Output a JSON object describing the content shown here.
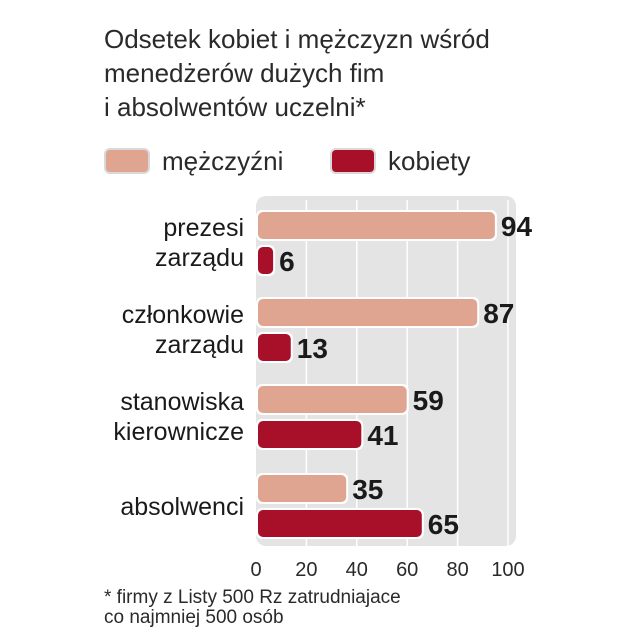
{
  "title_lines": [
    "Odsetek kobiet i mężczyzn wśród",
    "menedżerów dużych fim",
    "i absolwentów uczelni*"
  ],
  "legend": [
    {
      "label": "mężczyźni",
      "color": "#e0a590"
    },
    {
      "label": "kobiety",
      "color": "#a8102a"
    }
  ],
  "chart_data": {
    "type": "bar",
    "orientation": "horizontal",
    "categories": [
      [
        "prezesi",
        "zarządu"
      ],
      [
        "członkowie",
        "zarządu"
      ],
      [
        "stanowiska",
        "kierownicze"
      ],
      [
        "absolwenci"
      ]
    ],
    "series": [
      {
        "name": "mężczyźni",
        "values": [
          94,
          87,
          59,
          35
        ],
        "color": "#e0a590"
      },
      {
        "name": "kobiety",
        "values": [
          6,
          13,
          41,
          65
        ],
        "color": "#a8102a"
      }
    ],
    "xlim": [
      0,
      100
    ],
    "xticks": [
      0,
      20,
      40,
      60,
      80,
      100
    ],
    "grid": true
  },
  "footnote_lines": [
    "* firmy  z Listy 500 Rz zatrudniajace",
    "co najmniej 500 osób"
  ]
}
